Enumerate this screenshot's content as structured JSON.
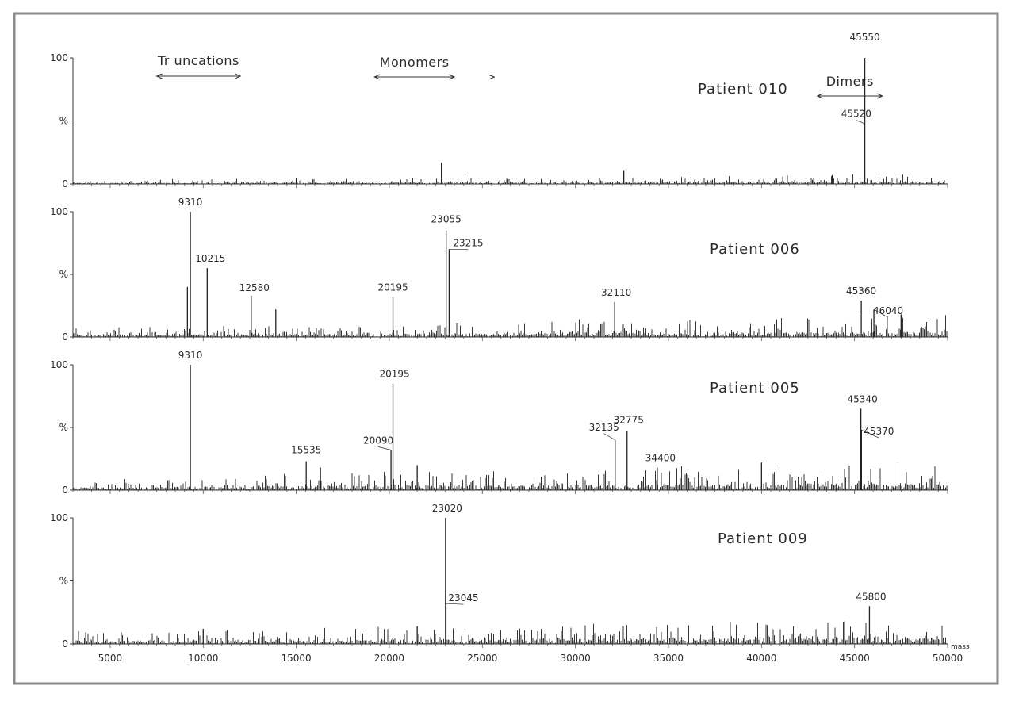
{
  "chart_data": {
    "type": "line",
    "xlabel": "mass",
    "xlim": [
      3000,
      50000
    ],
    "x_ticks": [
      5000,
      10000,
      15000,
      20000,
      25000,
      30000,
      35000,
      40000,
      45000,
      50000
    ],
    "y_tick_labels": {
      "top": "100",
      "mid": "%",
      "bottom": "0"
    },
    "ylim": [
      0,
      100
    ],
    "regions": [
      {
        "label": "Tr uncations",
        "range": [
          7500,
          12000
        ]
      },
      {
        "label": "Monomers",
        "range": [
          19200,
          23500
        ]
      },
      {
        "label": "Dimers",
        "range": [
          43000,
          46500
        ]
      }
    ],
    "extra_arrow_mark": {
      "label": ">",
      "x": 25500
    },
    "panels": [
      {
        "name": "Patient 010",
        "baseline": 1.5,
        "noise": 2,
        "peaks": [
          {
            "x": 45550,
            "y": 100,
            "label": "45550"
          },
          {
            "x": 45520,
            "y": 48,
            "label": "45520"
          },
          {
            "x": 22800,
            "y": 17
          },
          {
            "x": 32600,
            "y": 11
          },
          {
            "x": 15000,
            "y": 5
          },
          {
            "x": 43800,
            "y": 7
          }
        ]
      },
      {
        "name": "Patient 006",
        "baseline": 3,
        "noise": 5,
        "peaks": [
          {
            "x": 9310,
            "y": 100,
            "label": "9310"
          },
          {
            "x": 10215,
            "y": 55,
            "label": "10215"
          },
          {
            "x": 12580,
            "y": 33,
            "label": "12580"
          },
          {
            "x": 20195,
            "y": 32,
            "label": "20195"
          },
          {
            "x": 23055,
            "y": 85,
            "label": "23055"
          },
          {
            "x": 23215,
            "y": 70,
            "label": "23215"
          },
          {
            "x": 32110,
            "y": 28,
            "label": "32110"
          },
          {
            "x": 45360,
            "y": 29,
            "label": "45360"
          },
          {
            "x": 46040,
            "y": 22,
            "label": "46040"
          },
          {
            "x": 13900,
            "y": 22
          },
          {
            "x": 9150,
            "y": 40
          },
          {
            "x": 47500,
            "y": 18
          }
        ]
      },
      {
        "name": "Patient 005",
        "baseline": 4,
        "noise": 6,
        "peaks": [
          {
            "x": 9310,
            "y": 100,
            "label": "9310"
          },
          {
            "x": 15535,
            "y": 23,
            "label": "15535"
          },
          {
            "x": 20090,
            "y": 32,
            "label": "20090"
          },
          {
            "x": 20195,
            "y": 85,
            "label": "20195"
          },
          {
            "x": 32135,
            "y": 40,
            "label": "32135"
          },
          {
            "x": 32775,
            "y": 47,
            "label": "32775"
          },
          {
            "x": 34400,
            "y": 18,
            "label": "34400"
          },
          {
            "x": 45340,
            "y": 65,
            "label": "45340"
          },
          {
            "x": 45370,
            "y": 48,
            "label": "45370"
          },
          {
            "x": 40000,
            "y": 22
          },
          {
            "x": 16300,
            "y": 18
          },
          {
            "x": 21500,
            "y": 20
          }
        ]
      },
      {
        "name": "Patient 009",
        "baseline": 4,
        "noise": 6,
        "peaks": [
          {
            "x": 23020,
            "y": 100,
            "label": "23020"
          },
          {
            "x": 23045,
            "y": 32,
            "label": "23045"
          },
          {
            "x": 45800,
            "y": 30,
            "label": "45800"
          },
          {
            "x": 21500,
            "y": 14
          },
          {
            "x": 10000,
            "y": 12
          },
          {
            "x": 11300,
            "y": 11
          }
        ]
      }
    ]
  }
}
